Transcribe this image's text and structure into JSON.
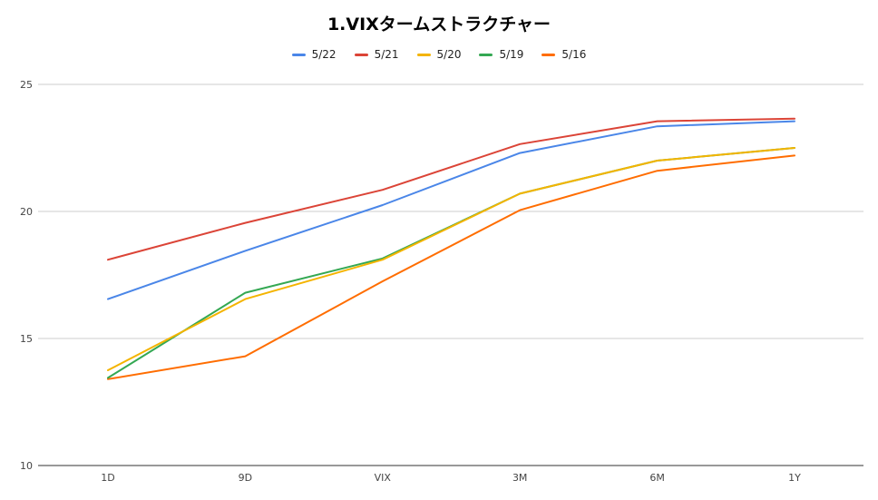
{
  "chart_data": {
    "type": "line",
    "title": "1.VIXタームストラクチャー",
    "xlabel": "",
    "ylabel": "",
    "categories": [
      "1D",
      "9D",
      "VIX",
      "3M",
      "6M",
      "1Y"
    ],
    "ylim": [
      10,
      25
    ],
    "yticks": [
      10,
      15,
      20,
      25
    ],
    "grid": true,
    "legend_position": "top",
    "series": [
      {
        "name": "5/22",
        "color": "#4a86e8",
        "values": [
          16.55,
          18.45,
          20.25,
          22.3,
          23.35,
          23.55
        ]
      },
      {
        "name": "5/21",
        "color": "#db4437",
        "values": [
          18.1,
          19.55,
          20.85,
          22.65,
          23.55,
          23.65
        ]
      },
      {
        "name": "5/20",
        "color": "#f4b400",
        "values": [
          13.75,
          16.55,
          18.1,
          20.7,
          22.0,
          22.5
        ]
      },
      {
        "name": "5/19",
        "color": "#34a853",
        "values": [
          13.45,
          16.8,
          18.15,
          20.7,
          22.0,
          22.5
        ]
      },
      {
        "name": "5/16",
        "color": "#ff6d00",
        "values": [
          13.4,
          14.3,
          17.25,
          20.05,
          21.6,
          22.2
        ]
      }
    ]
  }
}
